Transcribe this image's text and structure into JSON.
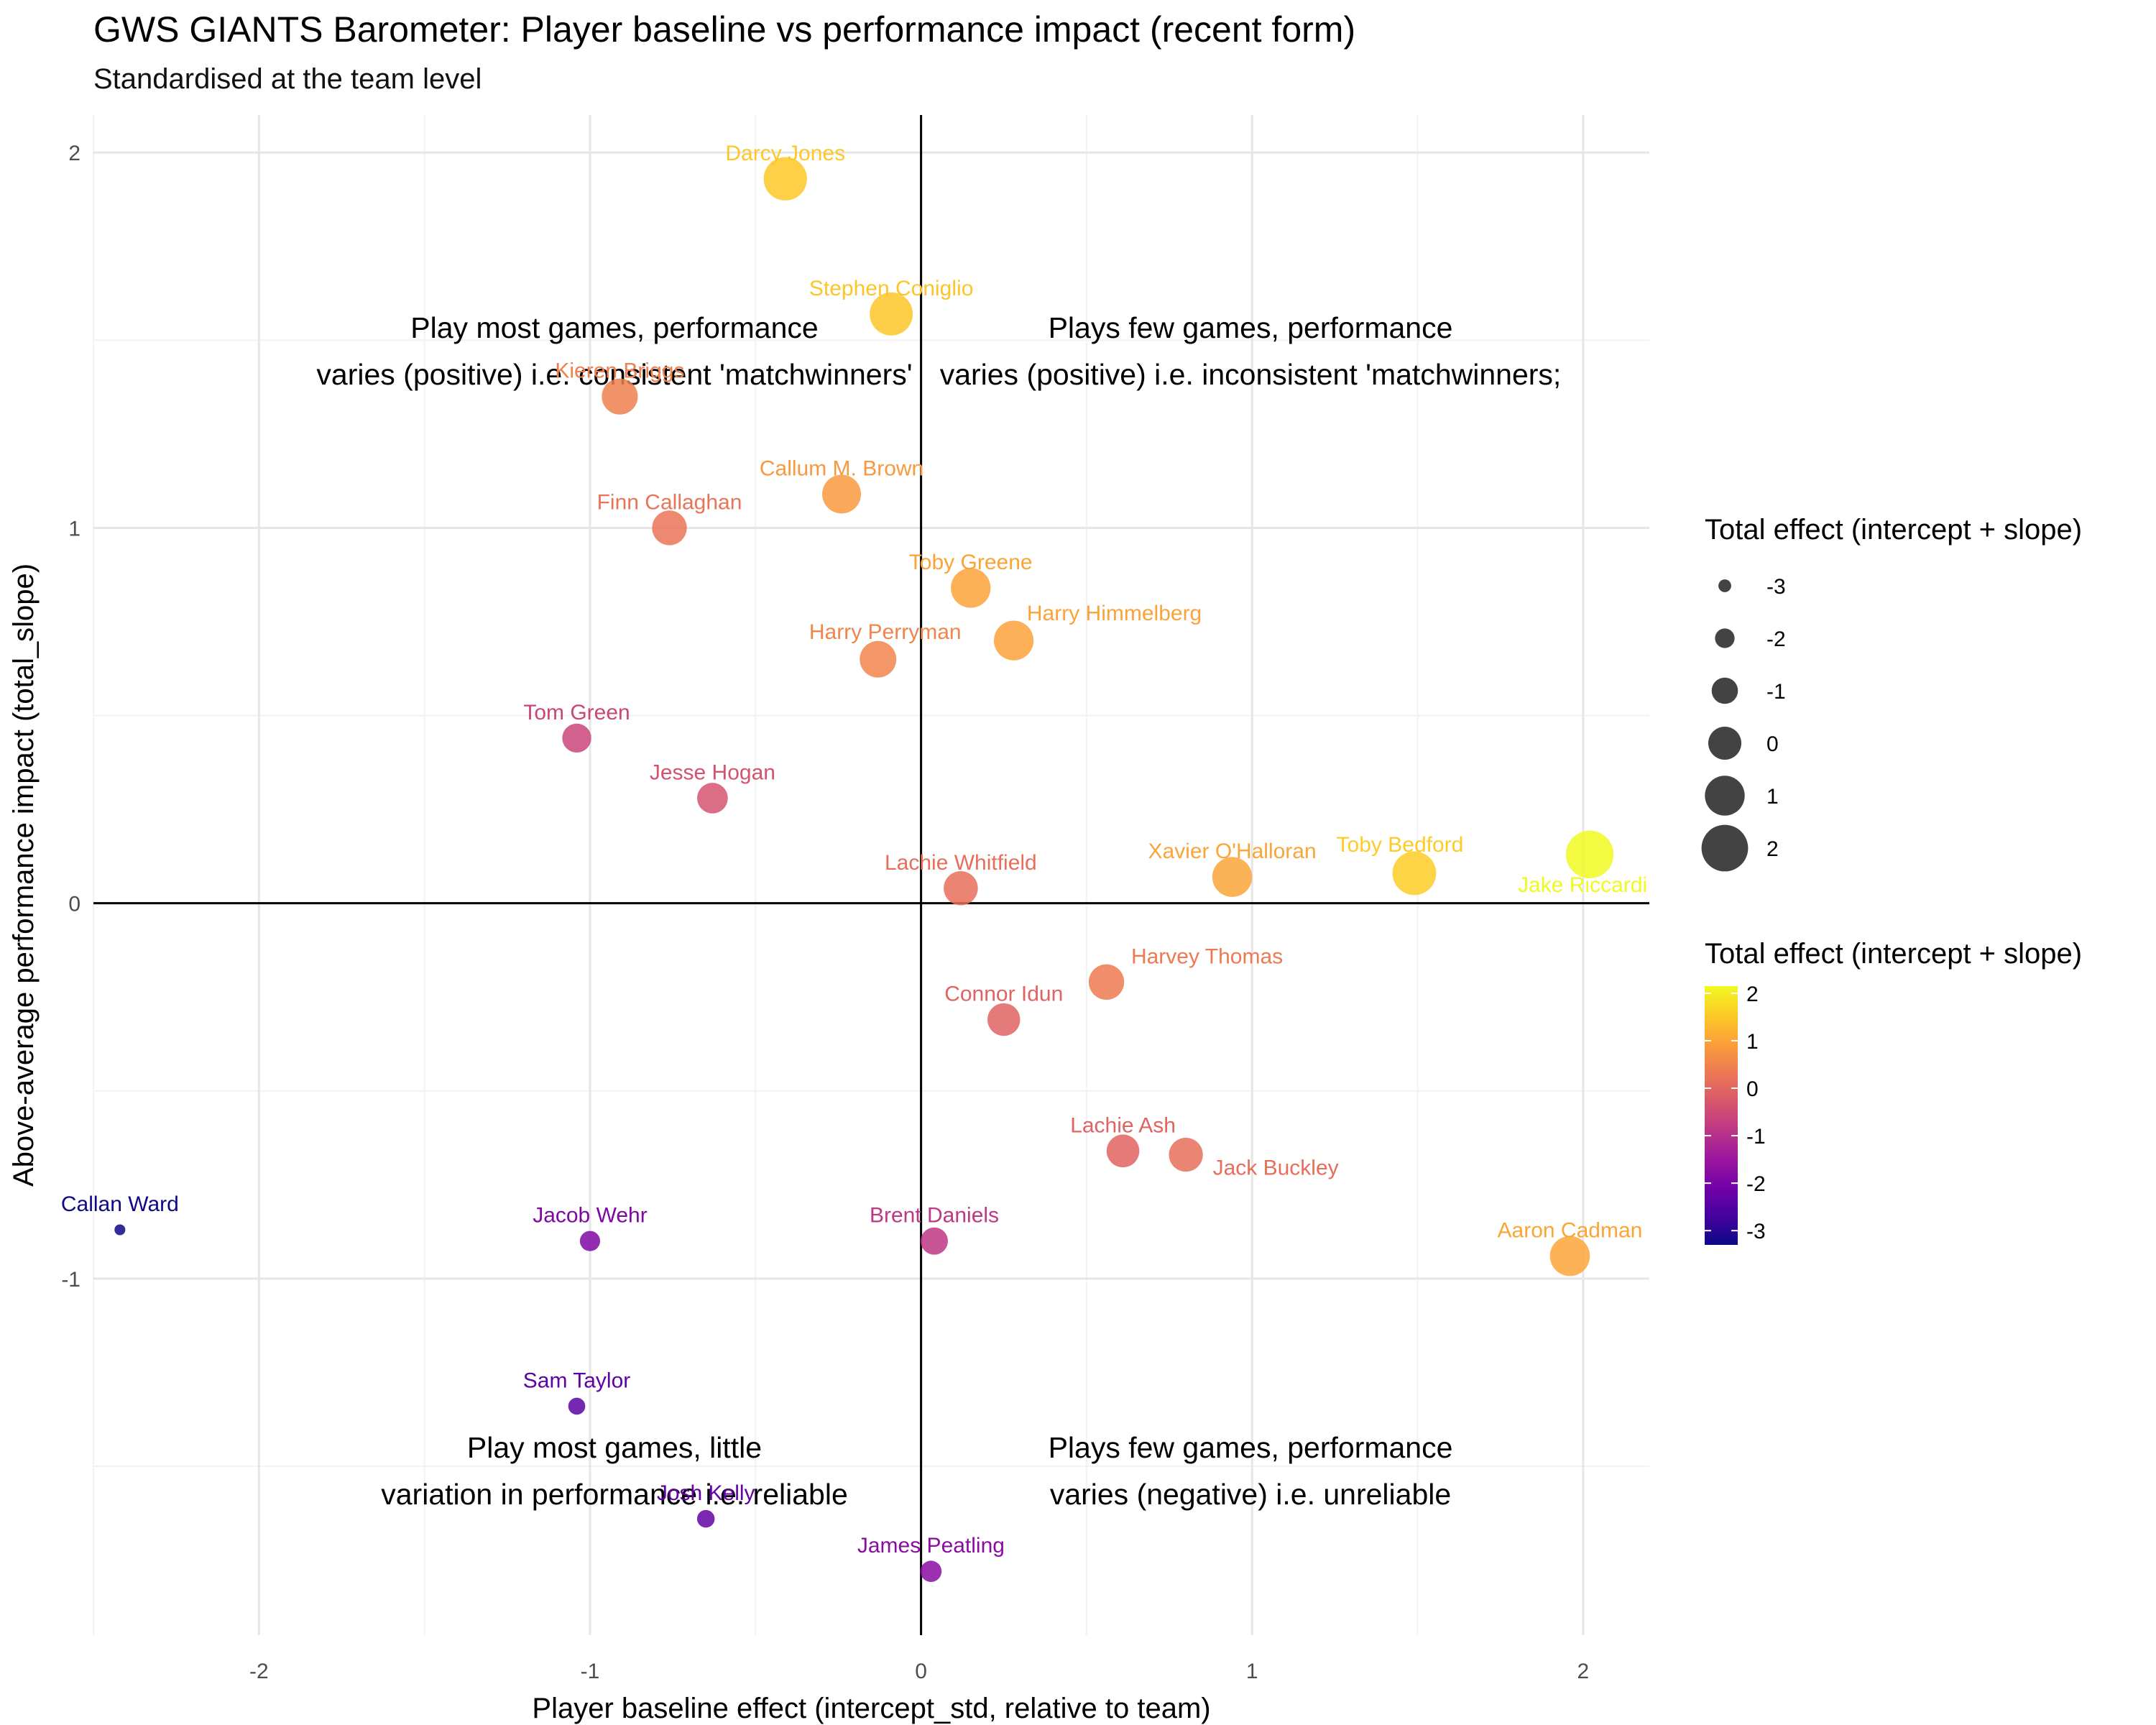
{
  "chart_data": {
    "type": "scatter",
    "title": "GWS GIANTS Barometer: Player baseline vs performance impact (recent form)",
    "subtitle": "Standardised at the team level",
    "xlabel": "Player baseline effect (intercept_std, relative to team)",
    "ylabel": "Above-average performance impact (total_slope)",
    "xlim": [
      -2.5,
      2.2
    ],
    "ylim": [
      -1.95,
      2.1
    ],
    "x_ticks": [
      -2,
      -1,
      0,
      1,
      2
    ],
    "y_ticks": [
      -1,
      0,
      1,
      2
    ],
    "grid": true,
    "reference_lines": {
      "x": 0,
      "y": 0
    },
    "legend_size": {
      "title": "Total effect (intercept + slope)",
      "values": [
        -3,
        -2,
        -1,
        0,
        1,
        2
      ],
      "labels": [
        "-3",
        "-2",
        "-1",
        "0",
        "1",
        "2"
      ]
    },
    "legend_color": {
      "title": "Total effect (intercept + slope)",
      "palette": "plasma",
      "range": [
        -3.3,
        2.15
      ],
      "ticks": [
        2,
        1,
        0,
        -1,
        -2,
        -3
      ],
      "labels": [
        "2",
        "1",
        "0",
        "-1",
        "-2",
        "-3"
      ]
    },
    "quadrant_labels": [
      {
        "line1": "Play most games, performance",
        "line2": "varies (positive) i.e. consistent 'matchwinners'"
      },
      {
        "line1": "Plays few games, performance",
        "line2": "varies (positive) i.e. inconsistent 'matchwinners;"
      },
      {
        "line1": "Play most games, little",
        "line2": "variation in performance i.e. reliable"
      },
      {
        "line1": "Plays few games, performance",
        "line2": "varies (negative) i.e. unreliable"
      }
    ],
    "points": [
      {
        "name": "Darcy Jones",
        "x": -0.41,
        "y": 1.93,
        "total": 1.52
      },
      {
        "name": "Stephen Coniglio",
        "x": -0.09,
        "y": 1.57,
        "total": 1.48
      },
      {
        "name": "Kieren Briggs",
        "x": -0.91,
        "y": 1.35,
        "total": 0.44
      },
      {
        "name": "Callum M. Brown",
        "x": -0.24,
        "y": 1.09,
        "total": 0.85
      },
      {
        "name": "Finn Callaghan",
        "x": -0.76,
        "y": 1.0,
        "total": 0.24
      },
      {
        "name": "Toby Greene",
        "x": 0.15,
        "y": 0.84,
        "total": 0.99
      },
      {
        "name": "Harry Himmelberg",
        "x": 0.28,
        "y": 0.7,
        "total": 0.98
      },
      {
        "name": "Harry Perryman",
        "x": -0.13,
        "y": 0.65,
        "total": 0.52
      },
      {
        "name": "Tom Green",
        "x": -1.04,
        "y": 0.44,
        "total": -0.6
      },
      {
        "name": "Jesse Hogan",
        "x": -0.63,
        "y": 0.28,
        "total": -0.35
      },
      {
        "name": "Lachie Whitfield",
        "x": 0.12,
        "y": 0.04,
        "total": 0.16
      },
      {
        "name": "Xavier O'Halloran",
        "x": 0.94,
        "y": 0.07,
        "total": 1.01
      },
      {
        "name": "Toby Bedford",
        "x": 1.49,
        "y": 0.08,
        "total": 1.57
      },
      {
        "name": "Jake Riccardi",
        "x": 2.02,
        "y": 0.13,
        "total": 2.15
      },
      {
        "name": "Harvey Thomas",
        "x": 0.56,
        "y": -0.21,
        "total": 0.35
      },
      {
        "name": "Connor Idun",
        "x": 0.25,
        "y": -0.31,
        "total": -0.06
      },
      {
        "name": "Lachie Ash",
        "x": 0.61,
        "y": -0.66,
        "total": -0.05
      },
      {
        "name": "Jack Buckley",
        "x": 0.8,
        "y": -0.67,
        "total": 0.13
      },
      {
        "name": "Brent Daniels",
        "x": 0.04,
        "y": -0.9,
        "total": -0.86
      },
      {
        "name": "Callan Ward",
        "x": -2.42,
        "y": -0.87,
        "total": -3.29
      },
      {
        "name": "Jacob Wehr",
        "x": -1.0,
        "y": -0.9,
        "total": -1.9
      },
      {
        "name": "Aaron Cadman",
        "x": 1.96,
        "y": -0.94,
        "total": 1.02
      },
      {
        "name": "Sam Taylor",
        "x": -1.04,
        "y": -1.34,
        "total": -2.38
      },
      {
        "name": "Josh Kelly",
        "x": -0.65,
        "y": -1.64,
        "total": -2.29
      },
      {
        "name": "James Peatling",
        "x": 0.03,
        "y": -1.78,
        "total": -1.75
      }
    ]
  }
}
